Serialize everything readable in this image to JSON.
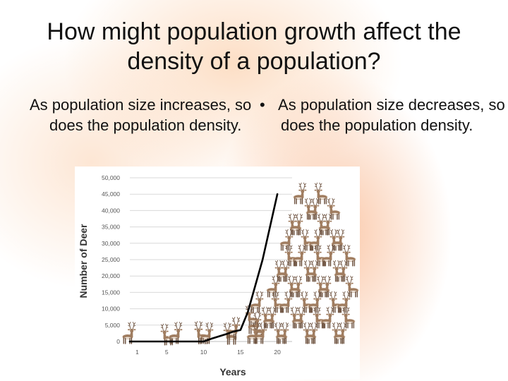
{
  "slide": {
    "title": "How might population growth affect the density of a population?",
    "bullet_left": "As population size increases, so does the population density.",
    "bullet_right_marker": "•",
    "bullet_right": "As population size decreases, so does the population density."
  },
  "colors": {
    "deer_body": "#a07d60",
    "deer_dark": "#6e5340",
    "deer_light": "#ece1d6",
    "line": "#000000",
    "grid": "#d9d9d9",
    "tick_text": "#555555",
    "axis_title": "#333333"
  },
  "icons": {
    "data_marker": "deer-icon"
  },
  "chart_data": {
    "type": "line",
    "title": "",
    "xlabel": "Years",
    "ylabel": "Number of Deer",
    "xlim": [
      0,
      22
    ],
    "ylim": [
      0,
      50000
    ],
    "x_ticks": [
      1,
      5,
      10,
      15,
      20
    ],
    "y_ticks": [
      {
        "value": 0,
        "label": "0"
      },
      {
        "value": 5000,
        "label": "5,000"
      },
      {
        "value": 10000,
        "label": "10,000"
      },
      {
        "value": 15000,
        "label": "15,000"
      },
      {
        "value": 20000,
        "label": "20,000"
      },
      {
        "value": 25000,
        "label": "25,000"
      },
      {
        "value": 30000,
        "label": "30,000"
      },
      {
        "value": 35000,
        "label": "35,000"
      },
      {
        "value": 40000,
        "label": "40,000"
      },
      {
        "value": 45000,
        "label": "45,000"
      },
      {
        "value": 50000,
        "label": "50,000"
      }
    ],
    "grid": true,
    "series": [
      {
        "x": [
          0,
          10,
          11,
          12,
          13,
          14,
          15,
          16,
          17,
          18,
          19,
          20
        ],
        "y": [
          0,
          0,
          800,
          1500,
          2200,
          3000,
          3500,
          9000,
          17000,
          25000,
          35000,
          45000
        ]
      }
    ]
  }
}
